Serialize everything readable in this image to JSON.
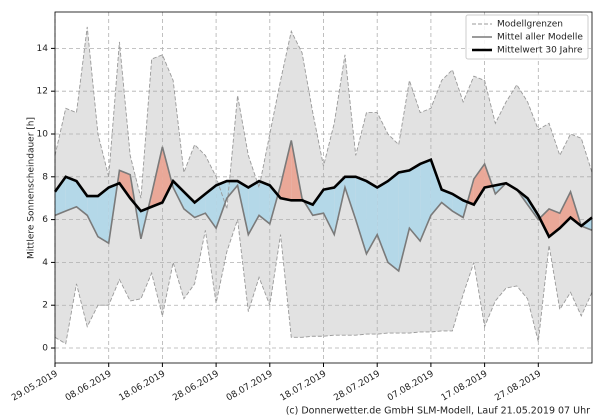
{
  "chart_data": {
    "type": "line",
    "y_label": "Mittlere Sonnenscheindauer [h]",
    "footer": "(c) Donnerwetter.de GmbH SLM-Modell, Lauf 21.05.2019 07 Uhr",
    "x": [
      "29.05.2019",
      "31.05.2019",
      "02.06.2019",
      "04.06.2019",
      "06.06.2019",
      "08.06.2019",
      "10.06.2019",
      "12.06.2019",
      "14.06.2019",
      "16.06.2019",
      "18.06.2019",
      "20.06.2019",
      "22.06.2019",
      "24.06.2019",
      "26.06.2019",
      "28.06.2019",
      "30.06.2019",
      "02.07.2019",
      "04.07.2019",
      "06.07.2019",
      "08.07.2019",
      "10.07.2019",
      "12.07.2019",
      "14.07.2019",
      "16.07.2019",
      "18.07.2019",
      "20.07.2019",
      "22.07.2019",
      "24.07.2019",
      "26.07.2019",
      "28.07.2019",
      "30.07.2019",
      "01.08.2019",
      "03.08.2019",
      "05.08.2019",
      "07.08.2019",
      "09.08.2019",
      "11.08.2019",
      "13.08.2019",
      "15.08.2019",
      "17.08.2019",
      "19.08.2019",
      "21.08.2019",
      "23.08.2019",
      "25.08.2019",
      "27.08.2019",
      "29.08.2019",
      "31.08.2019",
      "02.09.2019",
      "04.09.2019",
      "06.09.2019"
    ],
    "xlim": [
      "29.05.2019",
      "06.09.2019"
    ],
    "xticks": [
      "29.05.2019",
      "08.06.2019",
      "18.06.2019",
      "28.06.2019",
      "08.07.2019",
      "18.07.2019",
      "28.07.2019",
      "07.08.2019",
      "17.08.2019",
      "27.08.2019"
    ],
    "ylim": [
      -0.7,
      15.7
    ],
    "yticks": [
      0,
      2,
      4,
      6,
      8,
      10,
      12,
      14
    ],
    "grid": true,
    "legend": "upper right",
    "envelope_fill": "#e2e2e2",
    "above_color": "#eaa898",
    "below_color": "#b4d8e8",
    "series": [
      {
        "name": "Modellgrenzen",
        "color": "#999999",
        "values": [
          9,
          11.2,
          11,
          15,
          10,
          8,
          14.3,
          9,
          7,
          13.5,
          13.7,
          12.5,
          8.2,
          9.5,
          9,
          8,
          6.5,
          11.8,
          9,
          7.5,
          10,
          12.5,
          14.8,
          13.8,
          11,
          8.5,
          10.5,
          13.7,
          9,
          11,
          11,
          10,
          9.5,
          12.5,
          11,
          11.2,
          12.5,
          13,
          11.5,
          12.7,
          12.5,
          10.5,
          11.5,
          12.3,
          11.5,
          10.2,
          10.5,
          9,
          10,
          9.8,
          8.2
        ],
        "lower": [
          0.5,
          0.2,
          3,
          1,
          2,
          2,
          3.2,
          2.2,
          2.3,
          3.5,
          1.5,
          4,
          2.3,
          3,
          5.5,
          2.1,
          4.5,
          6,
          1.7,
          3.3,
          2,
          5.3,
          0.5,
          0.5,
          0.55,
          0.55,
          0.6,
          0.6,
          0.6,
          0.65,
          0.65,
          0.7,
          0.7,
          0.7,
          0.75,
          0.75,
          0.8,
          0.8,
          2.5,
          4,
          1,
          2.2,
          2.8,
          2.9,
          2.3,
          0.3,
          4.8,
          1.8,
          2.6,
          1.5,
          2.6
        ]
      },
      {
        "name": "Mittel aller Modelle",
        "color": "#7a7a7a",
        "values": [
          6.2,
          6.4,
          6.6,
          6.2,
          5.2,
          4.9,
          8.3,
          8.1,
          5.1,
          7.2,
          9.4,
          7.5,
          6.5,
          6.1,
          6.3,
          5.6,
          7.0,
          7.6,
          5.3,
          6.2,
          5.8,
          7.6,
          9.7,
          7.0,
          6.2,
          6.3,
          5.3,
          7.5,
          6.0,
          4.4,
          5.3,
          4.0,
          3.6,
          5.6,
          5.0,
          6.2,
          6.8,
          6.4,
          6.1,
          7.9,
          8.6,
          7.2,
          7.7,
          7.4,
          6.7,
          6.0,
          6.5,
          6.3,
          7.3,
          5.7,
          5.5
        ]
      },
      {
        "name": "Mittelwert 30 Jahre",
        "color": "#000000",
        "values": [
          7.3,
          8.0,
          7.8,
          7.1,
          7.1,
          7.5,
          7.7,
          7.0,
          6.4,
          6.6,
          6.8,
          7.8,
          7.3,
          6.8,
          7.2,
          7.6,
          7.8,
          7.8,
          7.5,
          7.8,
          7.6,
          7.0,
          6.9,
          6.9,
          6.7,
          7.4,
          7.5,
          8.0,
          8.0,
          7.8,
          7.5,
          7.8,
          8.2,
          8.3,
          8.6,
          8.8,
          7.4,
          7.2,
          6.9,
          6.7,
          7.5,
          7.6,
          7.7,
          7.4,
          7.0,
          6.2,
          5.2,
          5.6,
          6.1,
          5.7,
          6.1
        ]
      }
    ]
  }
}
